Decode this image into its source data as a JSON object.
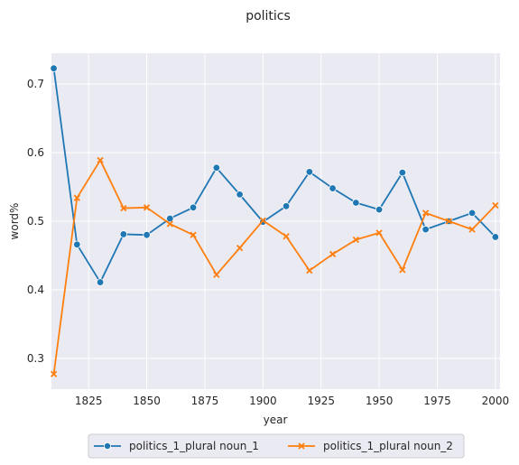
{
  "chart_data": {
    "type": "line",
    "title": "politics",
    "xlabel": "year",
    "ylabel": "word%",
    "xlim": [
      1809,
      2002
    ],
    "ylim": [
      0.255,
      0.745
    ],
    "xticks": [
      1825,
      1850,
      1875,
      1900,
      1925,
      1950,
      1975,
      2000
    ],
    "xtick_labels": [
      "1825",
      "1850",
      "1875",
      "1900",
      "1925",
      "1950",
      "1975",
      "2000"
    ],
    "yticks": [
      0.3,
      0.4,
      0.5,
      0.6,
      0.7
    ],
    "ytick_labels": [
      "0.3",
      "0.4",
      "0.5",
      "0.6",
      "0.7"
    ],
    "grid": true,
    "legend_position": "bottom-center",
    "x": [
      1810,
      1820,
      1830,
      1840,
      1850,
      1860,
      1870,
      1880,
      1890,
      1900,
      1910,
      1920,
      1930,
      1940,
      1950,
      1960,
      1970,
      1980,
      1990,
      2000
    ],
    "series": [
      {
        "name": "politics_1_plural noun_1",
        "color": "#1f77b4",
        "marker": "circle",
        "values": [
          0.723,
          0.466,
          0.411,
          0.481,
          0.48,
          0.504,
          0.52,
          0.578,
          0.539,
          0.499,
          0.522,
          0.572,
          0.548,
          0.527,
          0.517,
          0.571,
          0.488,
          0.5,
          0.512,
          0.477
        ]
      },
      {
        "name": "politics_1_plural noun_2",
        "color": "#ff7f0e",
        "marker": "x",
        "values": [
          0.277,
          0.534,
          0.589,
          0.519,
          0.52,
          0.496,
          0.48,
          0.422,
          0.461,
          0.501,
          0.478,
          0.428,
          0.452,
          0.473,
          0.483,
          0.429,
          0.512,
          0.5,
          0.488,
          0.523
        ]
      }
    ]
  }
}
